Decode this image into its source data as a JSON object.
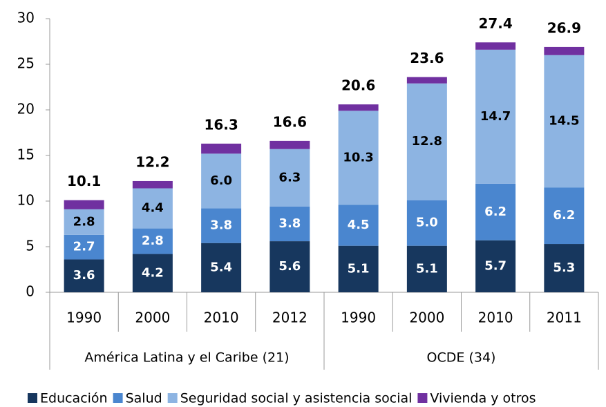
{
  "chart_data": {
    "type": "stacked-bar",
    "groups": [
      {
        "name": "América Latina y el Caribe (21)",
        "categories": [
          "1990",
          "2000",
          "2010",
          "2012"
        ]
      },
      {
        "name": "OCDE (34)",
        "categories": [
          "1990",
          "2000",
          "2010",
          "2011"
        ]
      }
    ],
    "series": [
      {
        "name": "Educación",
        "color": "#17375e",
        "label_color": "#ffffff",
        "values": [
          3.6,
          4.2,
          5.4,
          5.6,
          5.1,
          5.1,
          5.7,
          5.3
        ],
        "value_labels": [
          "3.6",
          "4.2",
          "5.4",
          "5.6",
          "5.1",
          "5.1",
          "5.7",
          "5.3"
        ]
      },
      {
        "name": "Salud",
        "color": "#4a86cf",
        "label_color": "#ffffff",
        "values": [
          2.7,
          2.8,
          3.8,
          3.8,
          4.5,
          5.0,
          6.2,
          6.2
        ],
        "value_labels": [
          "2.7",
          "2.8",
          "3.8",
          "3.8",
          "4.5",
          "5.0",
          "6.2",
          "6.2"
        ]
      },
      {
        "name": "Seguridad social y asistencia social",
        "color": "#8db4e2",
        "label_color": "#000000",
        "values": [
          2.8,
          4.4,
          6.0,
          6.3,
          10.3,
          12.8,
          14.7,
          14.5
        ],
        "value_labels": [
          "2.8",
          "4.4",
          "6.0",
          "6.3",
          "10.3",
          "12.8",
          "14.7",
          "14.5"
        ]
      },
      {
        "name": "Vivienda y otros",
        "color": "#7030a0",
        "values": [
          1.0,
          0.8,
          1.1,
          0.9,
          0.7,
          0.7,
          0.8,
          0.9
        ]
      }
    ],
    "totals": [
      10.1,
      12.2,
      16.3,
      16.6,
      20.6,
      23.6,
      27.4,
      26.9
    ],
    "ylim": [
      0,
      30
    ],
    "yticks": [
      0,
      5,
      10,
      15,
      20,
      25,
      30
    ],
    "grid": false
  }
}
